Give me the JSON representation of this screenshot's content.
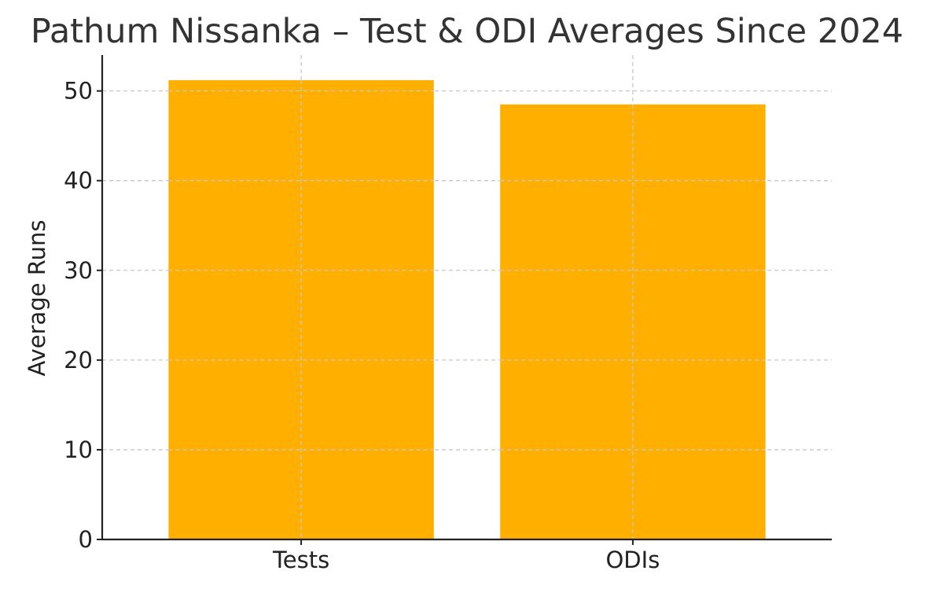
{
  "chart_data": {
    "type": "bar",
    "title": "Pathum Nissanka – Test & ODI Averages Since 2024",
    "xlabel": "",
    "ylabel": "Average Runs",
    "categories": [
      "Tests",
      "ODIs"
    ],
    "values": [
      51.2,
      48.5
    ],
    "ylim": [
      0,
      54
    ],
    "yticks": [
      0,
      10,
      20,
      30,
      40,
      50
    ],
    "ytick_labels": [
      "0",
      "10",
      "20",
      "30",
      "40",
      "50"
    ],
    "grid": true,
    "bar_color": "#FFAF00"
  }
}
